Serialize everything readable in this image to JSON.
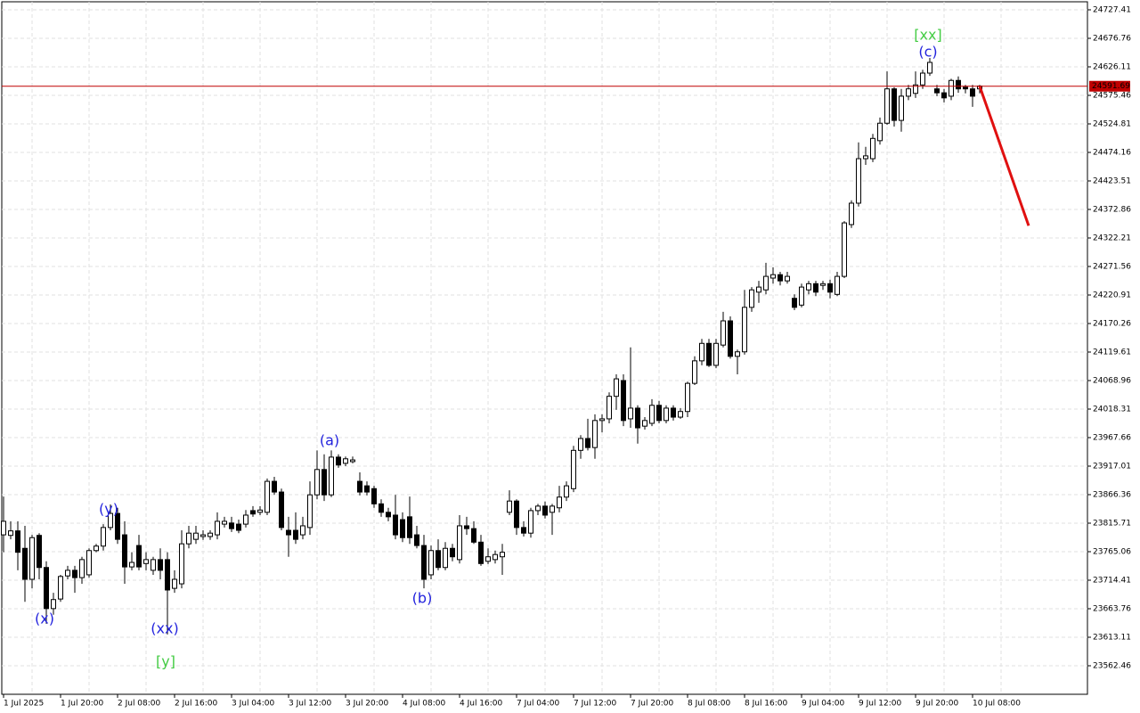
{
  "chart_data": {
    "type": "candlestick",
    "categories": [
      "1 Jul 2025",
      null,
      null,
      null,
      null,
      null,
      null,
      null,
      "1 Jul 20:00",
      null,
      null,
      null,
      null,
      null,
      null,
      null,
      "2 Jul 08:00",
      null,
      null,
      null,
      null,
      null,
      null,
      null,
      "2 Jul 16:00",
      null,
      null,
      null,
      null,
      null,
      null,
      null,
      "3 Jul 04:00",
      null,
      null,
      null,
      null,
      null,
      null,
      null,
      "3 Jul 12:00",
      null,
      null,
      null,
      null,
      null,
      null,
      null,
      "3 Jul 20:00",
      null,
      null,
      null,
      null,
      null,
      null,
      null,
      "4 Jul 08:00",
      null,
      null,
      null,
      null,
      null,
      null,
      null,
      "4 Jul 16:00",
      null,
      null,
      null,
      null,
      null,
      null,
      null,
      "7 Jul 04:00",
      null,
      null,
      null,
      null,
      null,
      null,
      null,
      "7 Jul 12:00",
      null,
      null,
      null,
      null,
      null,
      null,
      null,
      "7 Jul 20:00",
      null,
      null,
      null,
      null,
      null,
      null,
      null,
      "8 Jul 08:00",
      null,
      null,
      null,
      null,
      null,
      null,
      null,
      "8 Jul 16:00",
      null,
      null,
      null,
      null,
      null,
      null,
      null,
      "9 Jul 04:00",
      null,
      null,
      null,
      null,
      null,
      null,
      null,
      "9 Jul 12:00",
      null,
      null,
      null,
      null,
      null,
      null,
      null,
      "9 Jul 20:00",
      null,
      null,
      null,
      null,
      null,
      null,
      null,
      "10 Jul 08:00",
      null
    ],
    "ohlc": [
      [
        23795,
        23863,
        23764,
        23819
      ],
      [
        23794,
        23819,
        23787,
        23802
      ],
      [
        23802,
        23819,
        23732,
        23764
      ],
      [
        23771,
        23811,
        23676,
        23716
      ],
      [
        23716,
        23795,
        23700,
        23790
      ],
      [
        23794,
        23798,
        23716,
        23737
      ],
      [
        23737,
        23748,
        23637,
        23664
      ],
      [
        23664,
        23692,
        23653,
        23680
      ],
      [
        23681,
        23724,
        23676,
        23721
      ],
      [
        23722,
        23740,
        23716,
        23732
      ],
      [
        23732,
        23740,
        23692,
        23719
      ],
      [
        23719,
        23756,
        23708,
        23751
      ],
      [
        23724,
        23771,
        23719,
        23767
      ],
      [
        23767,
        23779,
        23764,
        23775
      ],
      [
        23775,
        23814,
        23767,
        23808
      ],
      [
        23808,
        23849,
        23803,
        23833
      ],
      [
        23833,
        23843,
        23779,
        23787
      ],
      [
        23795,
        23819,
        23708,
        23738
      ],
      [
        23738,
        23764,
        23732,
        23746
      ],
      [
        23776,
        23795,
        23732,
        23738
      ],
      [
        23744,
        23764,
        23732,
        23751
      ],
      [
        23732,
        23756,
        23724,
        23751
      ],
      [
        23751,
        23771,
        23716,
        23732
      ],
      [
        23751,
        23764,
        23618,
        23697
      ],
      [
        23700,
        23732,
        23692,
        23716
      ],
      [
        23708,
        23803,
        23700,
        23779
      ],
      [
        23779,
        23811,
        23771,
        23798
      ],
      [
        23787,
        23811,
        23779,
        23798
      ],
      [
        23792,
        23803,
        23786,
        23795
      ],
      [
        23792,
        23803,
        23786,
        23798
      ],
      [
        23795,
        23835,
        23787,
        23819
      ],
      [
        23814,
        23827,
        23808,
        23819
      ],
      [
        23816,
        23827,
        23800,
        23806
      ],
      [
        23814,
        23822,
        23798,
        23803
      ],
      [
        23814,
        23839,
        23808,
        23830
      ],
      [
        23838,
        23846,
        23827,
        23832
      ],
      [
        23835,
        23846,
        23830,
        23839
      ],
      [
        23835,
        23895,
        23830,
        23890
      ],
      [
        23890,
        23898,
        23866,
        23871
      ],
      [
        23871,
        23877,
        23803,
        23808
      ],
      [
        23803,
        23827,
        23756,
        23795
      ],
      [
        23803,
        23835,
        23779,
        23787
      ],
      [
        23795,
        23827,
        23787,
        23811
      ],
      [
        23808,
        23890,
        23795,
        23866
      ],
      [
        23866,
        23945,
        23858,
        23911
      ],
      [
        23911,
        23938,
        23855,
        23866
      ],
      [
        23866,
        23945,
        23862,
        23933
      ],
      [
        23933,
        23938,
        23914,
        23919
      ],
      [
        23922,
        23934,
        23917,
        23930
      ],
      [
        23925,
        23934,
        23922,
        23928
      ],
      [
        23890,
        23906,
        23865,
        23871
      ],
      [
        23882,
        23890,
        23865,
        23871
      ],
      [
        23877,
        23882,
        23843,
        23850
      ],
      [
        23850,
        23858,
        23827,
        23835
      ],
      [
        23835,
        23843,
        23819,
        23827
      ],
      [
        23830,
        23866,
        23787,
        23795
      ],
      [
        23822,
        23835,
        23782,
        23790
      ],
      [
        23827,
        23863,
        23779,
        23790
      ],
      [
        23795,
        23811,
        23771,
        23776
      ],
      [
        23776,
        23795,
        23700,
        23716
      ],
      [
        23724,
        23776,
        23716,
        23767
      ],
      [
        23767,
        23787,
        23732,
        23737
      ],
      [
        23737,
        23782,
        23732,
        23771
      ],
      [
        23771,
        23779,
        23748,
        23756
      ],
      [
        23751,
        23830,
        23744,
        23811
      ],
      [
        23811,
        23827,
        23795,
        23806
      ],
      [
        23806,
        23819,
        23779,
        23782
      ],
      [
        23782,
        23795,
        23740,
        23744
      ],
      [
        23748,
        23771,
        23743,
        23756
      ],
      [
        23751,
        23767,
        23744,
        23760
      ],
      [
        23756,
        23779,
        23724,
        23764
      ],
      [
        23835,
        23874,
        23830,
        23855
      ],
      [
        23855,
        23858,
        23795,
        23808
      ],
      [
        23808,
        23819,
        23792,
        23798
      ],
      [
        23798,
        23843,
        23790,
        23838
      ],
      [
        23838,
        23850,
        23830,
        23846
      ],
      [
        23846,
        23854,
        23824,
        23830
      ],
      [
        23835,
        23850,
        23795,
        23846
      ],
      [
        23843,
        23882,
        23835,
        23862
      ],
      [
        23862,
        23890,
        23855,
        23882
      ],
      [
        23877,
        23953,
        23871,
        23945
      ],
      [
        23945,
        23972,
        23930,
        23966
      ],
      [
        23966,
        24001,
        23945,
        23950
      ],
      [
        23950,
        24009,
        23930,
        23998
      ],
      [
        23998,
        24009,
        23977,
        24001
      ],
      [
        24001,
        24048,
        23993,
        24041
      ],
      [
        24041,
        24080,
        24017,
        24072
      ],
      [
        24069,
        24080,
        23988,
        23998
      ],
      [
        24001,
        24128,
        23985,
        24020
      ],
      [
        24020,
        24025,
        23957,
        23985
      ],
      [
        23988,
        24004,
        23982,
        23998
      ],
      [
        23993,
        24036,
        23988,
        24025
      ],
      [
        24025,
        24033,
        23993,
        23998
      ],
      [
        23998,
        24025,
        23993,
        24020
      ],
      [
        24020,
        24025,
        23998,
        24004
      ],
      [
        24004,
        24020,
        24001,
        24014
      ],
      [
        24014,
        24067,
        24004,
        24064
      ],
      [
        24064,
        24112,
        24061,
        24104
      ],
      [
        24104,
        24143,
        24096,
        24135
      ],
      [
        24135,
        24143,
        24093,
        24096
      ],
      [
        24096,
        24143,
        24091,
        24135
      ],
      [
        24132,
        24191,
        24128,
        24175
      ],
      [
        24175,
        24183,
        24108,
        24112
      ],
      [
        24112,
        24124,
        24080,
        24120
      ],
      [
        24120,
        24230,
        24115,
        24199
      ],
      [
        24199,
        24235,
        24191,
        24230
      ],
      [
        24226,
        24246,
        24207,
        24235
      ],
      [
        24230,
        24278,
        24222,
        24254
      ],
      [
        24251,
        24270,
        24241,
        24257
      ],
      [
        24257,
        24262,
        24238,
        24246
      ],
      [
        24246,
        24262,
        24241,
        24254
      ],
      [
        24215,
        24222,
        24194,
        24199
      ],
      [
        24203,
        24241,
        24199,
        24235
      ],
      [
        24230,
        24246,
        24222,
        24241
      ],
      [
        24241,
        24246,
        24219,
        24226
      ],
      [
        24238,
        24246,
        24230,
        24241
      ],
      [
        24241,
        24248,
        24215,
        24226
      ],
      [
        24222,
        24262,
        24219,
        24254
      ],
      [
        24254,
        24352,
        24251,
        24349
      ],
      [
        24346,
        24389,
        24340,
        24384
      ],
      [
        24384,
        24492,
        24378,
        24463
      ],
      [
        24463,
        24484,
        24452,
        24468
      ],
      [
        24463,
        24507,
        24457,
        24499
      ],
      [
        24495,
        24536,
        24488,
        24526
      ],
      [
        24526,
        24618,
        24523,
        24587
      ],
      [
        24587,
        24590,
        24520,
        24531
      ],
      [
        24531,
        24587,
        24511,
        24574
      ],
      [
        24574,
        24594,
        24567,
        24587
      ],
      [
        24579,
        24618,
        24571,
        24594
      ],
      [
        24594,
        24621,
        24587,
        24615
      ],
      [
        24615,
        24642,
        24610,
        24634
      ],
      [
        24587,
        24594,
        24574,
        24580
      ],
      [
        24580,
        24587,
        24563,
        24571
      ],
      [
        24574,
        24605,
        24567,
        24602
      ],
      [
        24602,
        24609,
        24580,
        24587
      ],
      [
        24590,
        24594,
        24579,
        24587
      ],
      [
        24587,
        24594,
        24555,
        24574
      ],
      [
        24587,
        24594,
        24579,
        24592
      ]
    ],
    "up_color": "#ffffff",
    "down_color": "#000000",
    "ylim": [
      23511.81,
      24744.82
    ],
    "yticks": [
      23562.46,
      23613.11,
      23663.76,
      23714.41,
      23765.06,
      23815.71,
      23866.36,
      23917.01,
      23967.66,
      24018.31,
      24068.96,
      24119.61,
      24170.26,
      24220.91,
      24271.56,
      24322.21,
      24372.86,
      24423.51,
      24474.16,
      24524.81,
      24575.46,
      24626.11,
      24676.76,
      24727.41
    ],
    "grid": true,
    "current_price": 24591.69,
    "current_price_color": "#c00000",
    "projection": {
      "from": 24591.69,
      "to": 24344,
      "color": "#e01010"
    },
    "annotations": [
      {
        "text": "(x)",
        "color": "#2222dd"
      },
      {
        "text": "(y)",
        "color": "#2222dd"
      },
      {
        "text": "(xx)",
        "color": "#2222dd"
      },
      {
        "text": "[y]",
        "color": "#44cc44"
      },
      {
        "text": "(a)",
        "color": "#2222dd"
      },
      {
        "text": "(b)",
        "color": "#2222dd"
      },
      {
        "text": "(c)",
        "color": "#2222dd"
      },
      {
        "text": "[xx]",
        "color": "#44cc44"
      }
    ]
  }
}
